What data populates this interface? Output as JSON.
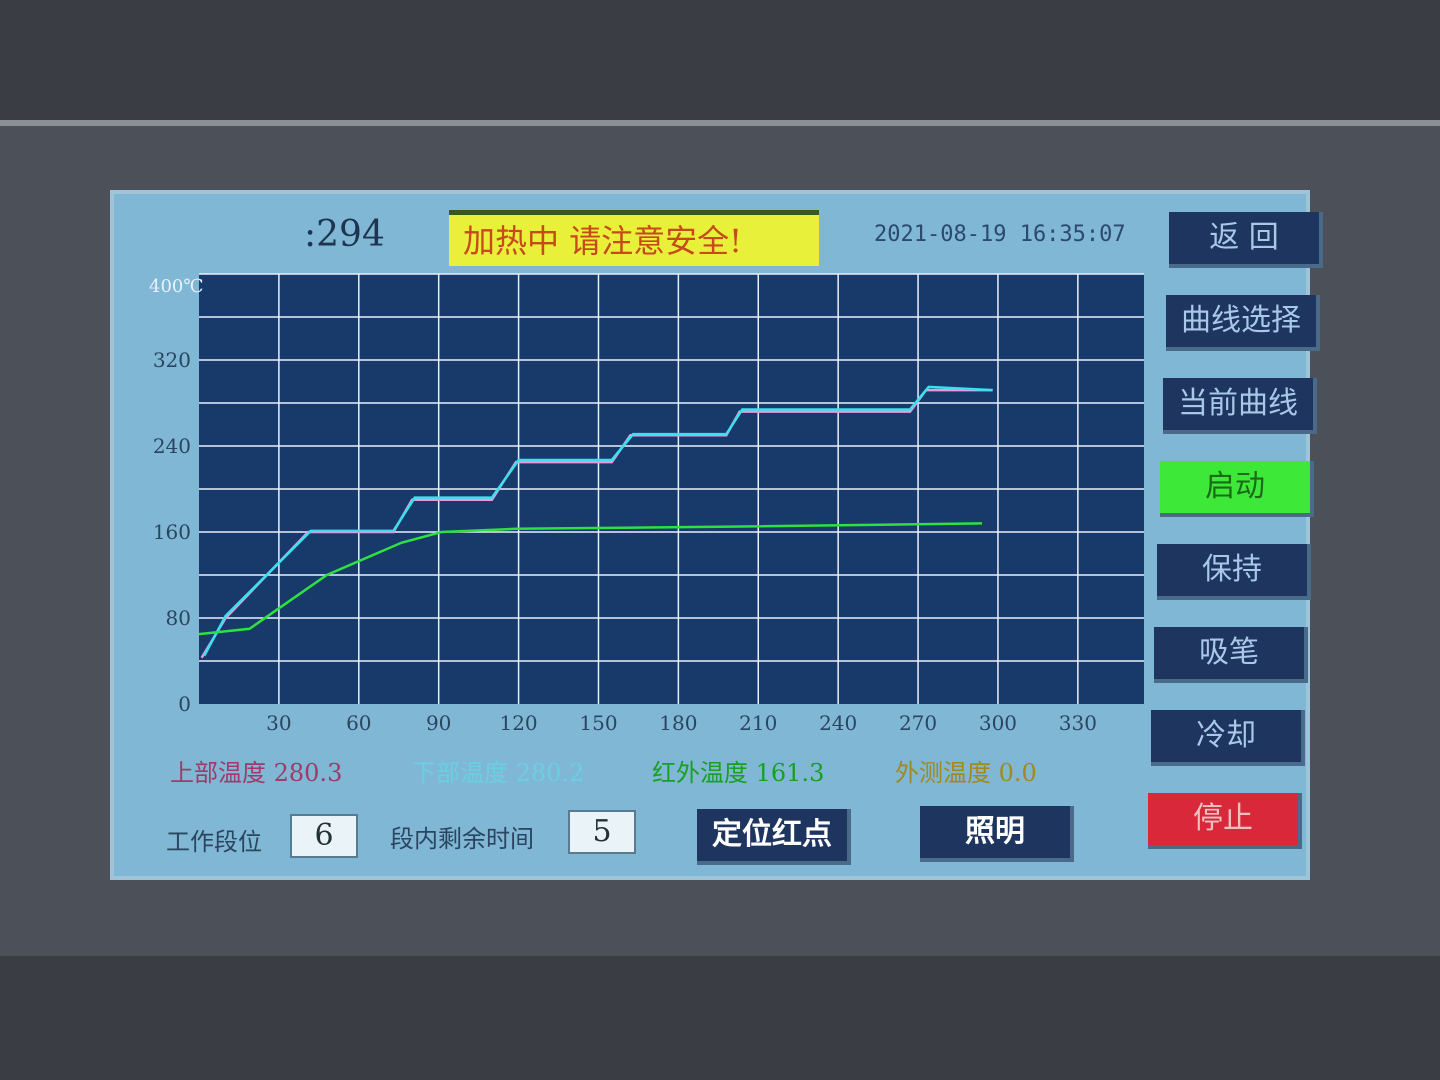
{
  "header": {
    "runtime_text": ":294",
    "warning": "加热中   请注意安全!",
    "datetime": "2021-08-19 16:35:07"
  },
  "side_buttons": [
    {
      "label": "返 回",
      "color": "#1e3560"
    },
    {
      "label": "曲线选择",
      "color": "#1e3560"
    },
    {
      "label": "当前曲线",
      "color": "#1e3560"
    },
    {
      "label": "启动",
      "color": "#3ee838"
    },
    {
      "label": "保持",
      "color": "#1e3560"
    },
    {
      "label": "吸笔",
      "color": "#1e3560"
    },
    {
      "label": "冷却",
      "color": "#1e3560"
    },
    {
      "label": "停止",
      "color": "#d8283a"
    }
  ],
  "readouts": [
    {
      "label": "上部温度 280.3",
      "color": "#f08ac0"
    },
    {
      "label": "下部温度 280.2",
      "color": "#22eef0"
    },
    {
      "label": "红外温度 161.3",
      "color": "#22ee33"
    },
    {
      "label": "外测温度 0.0",
      "color": "#e8f033"
    }
  ],
  "status": {
    "stage_label": "工作段位",
    "stage_value": "6",
    "remain_label": "段内剩余时间",
    "remain_value": "5",
    "locate_button": "定位红点",
    "light_button": "照明"
  },
  "chart_data": {
    "type": "line",
    "ylabel": "400℃",
    "xlim": [
      0,
      330
    ],
    "ylim": [
      0,
      400
    ],
    "grid": true,
    "xticks": [
      30,
      60,
      90,
      120,
      150,
      180,
      210,
      240,
      270,
      300,
      330
    ],
    "yticks": [
      0,
      80,
      160,
      240,
      320
    ],
    "series": [
      {
        "color": "#e89ad8",
        "x": [
          1,
          10,
          41,
          73,
          80,
          110,
          119,
          155,
          162,
          198,
          203,
          267,
          273,
          298
        ],
        "y": [
          43,
          80,
          160,
          160,
          190,
          190,
          225,
          225,
          250,
          250,
          272,
          272,
          292,
          292
        ]
      },
      {
        "color": "#3ae0f0",
        "x": [
          2,
          10,
          42,
          73,
          81,
          110,
          120,
          155,
          163,
          198,
          204,
          267,
          274,
          298
        ],
        "y": [
          45,
          82,
          161,
          161,
          192,
          192,
          227,
          227,
          251,
          251,
          274,
          274,
          295,
          292
        ]
      },
      {
        "color": "#2ee040",
        "x": [
          0,
          19,
          48,
          76,
          91,
          119,
          200,
          294
        ],
        "y": [
          65,
          70,
          120,
          150,
          160,
          163,
          165,
          168
        ]
      }
    ]
  }
}
